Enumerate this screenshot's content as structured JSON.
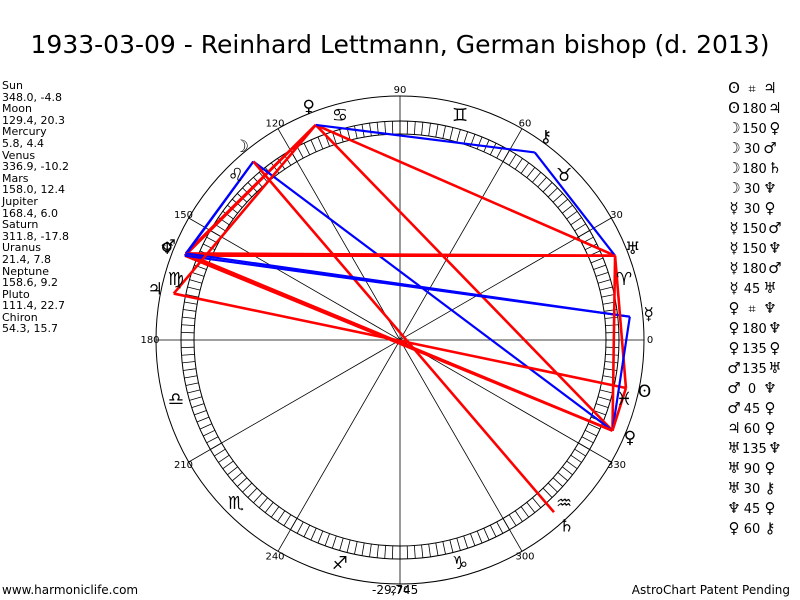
{
  "title": "1933-03-09 - Reinhard Lettmann, German bishop (d. 2013)",
  "planets": [
    {
      "name": "Sun",
      "coords": "348.0, -4.8"
    },
    {
      "name": "Moon",
      "coords": "129.4, 20.3"
    },
    {
      "name": "Mercury",
      "coords": "5.8, 4.4"
    },
    {
      "name": "Venus",
      "coords": "336.9, -10.2"
    },
    {
      "name": "Mars",
      "coords": "158.0, 12.4"
    },
    {
      "name": "Jupiter",
      "coords": "168.4, 6.0"
    },
    {
      "name": "Saturn",
      "coords": "311.8, -17.8"
    },
    {
      "name": "Uranus",
      "coords": "21.4, 7.8"
    },
    {
      "name": "Neptune",
      "coords": "158.6, 9.2"
    },
    {
      "name": "Pluto",
      "coords": "111.4, 22.7"
    },
    {
      "name": "Chiron",
      "coords": "54.3, 15.7"
    }
  ],
  "aspects": [
    {
      "g1": "ʘ",
      "op": "⌗",
      "g2": "♃"
    },
    {
      "g1": "ʘ",
      "op": "180",
      "g2": "♃"
    },
    {
      "g1": "☽",
      "op": "150",
      "g2": "♀"
    },
    {
      "g1": "☽",
      "op": "30",
      "g2": "♂"
    },
    {
      "g1": "☽",
      "op": "180",
      "g2": "♄"
    },
    {
      "g1": "☽",
      "op": "30",
      "g2": "♆"
    },
    {
      "g1": "☿",
      "op": "30",
      "g2": "♀"
    },
    {
      "g1": "☿",
      "op": "150",
      "g2": "♂"
    },
    {
      "g1": "☿",
      "op": "150",
      "g2": "♆"
    },
    {
      "g1": "☿",
      "op": "180",
      "g2": "♂"
    },
    {
      "g1": "☿",
      "op": "45",
      "g2": "♅"
    },
    {
      "g1": "♀",
      "op": "⌗",
      "g2": "♆"
    },
    {
      "g1": "♀",
      "op": "180",
      "g2": "♆"
    },
    {
      "g1": "♀",
      "op": "135",
      "g2": "♀"
    },
    {
      "g1": "♂",
      "op": "135",
      "g2": "♅"
    },
    {
      "g1": "♂",
      "op": "0",
      "g2": "♆"
    },
    {
      "g1": "♂",
      "op": "45",
      "g2": "♀"
    },
    {
      "g1": "♃",
      "op": "60",
      "g2": "♀"
    },
    {
      "g1": "♅",
      "op": "135",
      "g2": "♆"
    },
    {
      "g1": "♅",
      "op": "90",
      "g2": "♀"
    },
    {
      "g1": "♅",
      "op": "30",
      "g2": "⚷"
    },
    {
      "g1": "♆",
      "op": "45",
      "g2": "♀"
    },
    {
      "g1": "♀",
      "op": "60",
      "g2": "⚷"
    }
  ],
  "wheel": {
    "degree_labels": [
      "90",
      "60",
      "30",
      "0",
      "330",
      "300",
      "270",
      "240",
      "210",
      "180",
      "150",
      "120"
    ],
    "sign_glyphs": [
      "♈",
      "♉",
      "♊",
      "♋",
      "♌",
      "♍",
      "♎",
      "♏",
      "♐",
      "♑",
      "♒",
      "♓"
    ],
    "planet_glyphs": [
      {
        "glyph": "ʘ",
        "lon": 348.0
      },
      {
        "glyph": "☽",
        "lon": 129.4
      },
      {
        "glyph": "☿",
        "lon": 5.8
      },
      {
        "glyph": "♀",
        "lon": 336.9
      },
      {
        "glyph": "♂",
        "lon": 158.0
      },
      {
        "glyph": "♃",
        "lon": 168.4
      },
      {
        "glyph": "♄",
        "lon": 311.8
      },
      {
        "glyph": "♅",
        "lon": 21.4
      },
      {
        "glyph": "♆",
        "lon": 158.6
      },
      {
        "glyph": "♀",
        "lon": 111.4
      },
      {
        "glyph": "⚷",
        "lon": 54.3
      }
    ],
    "aspect_lines": [
      {
        "a": 111.4,
        "b": 21.4,
        "color": "#ff0000"
      },
      {
        "a": 111.4,
        "b": 158.0,
        "color": "#ff0000"
      },
      {
        "a": 111.4,
        "b": 158.6,
        "color": "#ff0000"
      },
      {
        "a": 111.4,
        "b": 336.9,
        "color": "#ff0000"
      },
      {
        "a": 111.4,
        "b": 54.3,
        "color": "#0000ff"
      },
      {
        "a": 54.3,
        "b": 21.4,
        "color": "#0000ff"
      },
      {
        "a": 129.4,
        "b": 158.0,
        "color": "#0000ff"
      },
      {
        "a": 129.4,
        "b": 158.6,
        "color": "#0000ff"
      },
      {
        "a": 129.4,
        "b": 336.9,
        "color": "#0000ff"
      },
      {
        "a": 129.4,
        "b": 311.8,
        "color": "#ff0000"
      },
      {
        "a": 158.0,
        "b": 21.4,
        "color": "#ff0000"
      },
      {
        "a": 158.6,
        "b": 21.4,
        "color": "#ff0000"
      },
      {
        "a": 158.0,
        "b": 336.9,
        "color": "#ff0000"
      },
      {
        "a": 158.6,
        "b": 336.9,
        "color": "#ff0000"
      },
      {
        "a": 158.0,
        "b": 5.8,
        "color": "#0000ff"
      },
      {
        "a": 158.6,
        "b": 5.8,
        "color": "#0000ff"
      },
      {
        "a": 168.4,
        "b": 348.0,
        "color": "#ff0000"
      },
      {
        "a": 168.4,
        "b": 111.4,
        "color": "#ff0000"
      },
      {
        "a": 21.4,
        "b": 348.0,
        "color": "#ff0000"
      },
      {
        "a": 21.4,
        "b": 336.9,
        "color": "#ff0000"
      },
      {
        "a": 5.8,
        "b": 336.9,
        "color": "#0000ff"
      },
      {
        "a": 348.0,
        "b": 336.9,
        "color": "#ff0000"
      }
    ]
  },
  "footer": {
    "left": "www.harmoniclife.com",
    "center": "-29,745",
    "right": "AstroChart Patent Pending"
  }
}
